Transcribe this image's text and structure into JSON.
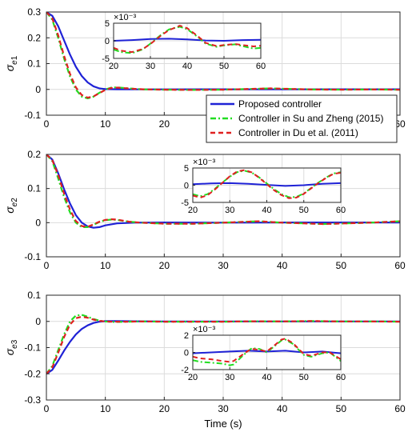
{
  "colors": {
    "proposed": "#1f22d6",
    "su_zheng": "#22dd22",
    "du": "#e02020",
    "grid": "#dcdcdc",
    "axis": "#262626"
  },
  "legend": {
    "entries": [
      "Proposed controller",
      "Controller in Su and Zheng (2015)",
      "Controller in Du et al. (2011)"
    ]
  },
  "chart_data": [
    {
      "type": "line",
      "ylabel": "σe1",
      "xlim": [
        0,
        60
      ],
      "ylim": [
        -0.1,
        0.3
      ],
      "xticks": [
        0,
        10,
        20,
        30,
        40,
        50,
        60
      ],
      "yticks": [
        -0.1,
        0,
        0.1,
        0.2,
        0.3
      ],
      "xticklabels": [
        "0",
        "10",
        "20",
        "30",
        "40",
        "50",
        "60"
      ],
      "yticklabels": [
        "-0.1",
        "0",
        "0.1",
        "0.2",
        "0.3"
      ],
      "grid": true,
      "legend_position": "bottom-right",
      "series": [
        {
          "name": "Proposed controller",
          "style": "solid",
          "x": [
            0,
            1,
            2,
            3,
            4,
            5,
            6,
            7,
            8,
            9,
            10,
            12,
            15,
            20,
            30,
            40,
            50,
            60
          ],
          "y": [
            0.3,
            0.285,
            0.245,
            0.19,
            0.135,
            0.088,
            0.052,
            0.027,
            0.012,
            0.004,
            0.001,
            0.0005,
            0.0003,
            0.0002,
            0.0004,
            0.0003,
            0.0005,
            0.0005
          ]
        },
        {
          "name": "Controller in Su and Zheng (2015)",
          "style": "dashdot",
          "x": [
            0,
            1,
            2,
            3,
            4,
            5,
            6,
            7,
            8,
            9,
            10,
            11,
            12,
            13,
            15,
            17,
            20,
            25,
            30,
            38,
            45,
            50,
            55,
            60
          ],
          "y": [
            0.3,
            0.27,
            0.2,
            0.12,
            0.05,
            0.0,
            -0.028,
            -0.035,
            -0.028,
            -0.013,
            0.0,
            0.007,
            0.008,
            0.006,
            0.002,
            0.0,
            -0.001,
            -0.002,
            -0.001,
            0.004,
            0.0,
            -0.001,
            0.0,
            -0.001
          ]
        },
        {
          "name": "Controller in Du et al. (2011)",
          "style": "dashed",
          "x": [
            0,
            1,
            2,
            3,
            4,
            5,
            6,
            7,
            8,
            9,
            10,
            11,
            12,
            13,
            15,
            17,
            20,
            25,
            30,
            38,
            45,
            50,
            55,
            60
          ],
          "y": [
            0.3,
            0.275,
            0.21,
            0.13,
            0.06,
            0.008,
            -0.022,
            -0.032,
            -0.027,
            -0.014,
            -0.002,
            0.005,
            0.007,
            0.005,
            0.002,
            0.0,
            -0.001,
            -0.002,
            -0.001,
            0.004,
            0.0,
            -0.001,
            0.0,
            -0.001
          ]
        }
      ],
      "inset": {
        "scale_label": "×10⁻³",
        "xlim": [
          20,
          60
        ],
        "ylim": [
          -5,
          5
        ],
        "xticks": [
          20,
          30,
          40,
          50,
          60
        ],
        "yticks": [
          -5,
          0,
          5
        ],
        "xticklabels": [
          "20",
          "30",
          "40",
          "50",
          "60"
        ],
        "yticklabels": [
          "-5",
          "0",
          "5"
        ],
        "series": [
          {
            "name": "Proposed controller",
            "x": [
              20,
              25,
              30,
              35,
              40,
              45,
              50,
              55,
              60
            ],
            "y": [
              0,
              0.2,
              0.5,
              0.6,
              0.4,
              0.1,
              0.0,
              0.2,
              0.3
            ]
          },
          {
            "name": "Controller in Su and Zheng (2015)",
            "x": [
              20,
              22,
              25,
              28,
              30,
              33,
              35,
              38,
              40,
              43,
              45,
              48,
              50,
              53,
              55,
              58,
              60
            ],
            "y": [
              -2.5,
              -3.2,
              -3.5,
              -2.4,
              -0.8,
              1.8,
              3.2,
              4.0,
              3.3,
              1.0,
              -0.8,
              -1.7,
              -1.3,
              -1.0,
              -1.5,
              -2.2,
              -2.0
            ]
          },
          {
            "name": "Controller in Du et al. (2011)",
            "x": [
              20,
              22,
              25,
              28,
              30,
              33,
              35,
              38,
              40,
              43,
              45,
              48,
              50,
              53,
              55,
              58,
              60
            ],
            "y": [
              -2.0,
              -2.8,
              -3.2,
              -2.3,
              -0.9,
              1.6,
              3.0,
              4.3,
              3.6,
              1.2,
              -0.6,
              -1.5,
              -1.2,
              -0.9,
              -1.2,
              -1.6,
              -1.4
            ]
          }
        ]
      }
    },
    {
      "type": "line",
      "ylabel": "σe2",
      "xlim": [
        0,
        60
      ],
      "ylim": [
        -0.1,
        0.2
      ],
      "xticks": [
        0,
        10,
        20,
        30,
        40,
        50,
        60
      ],
      "yticks": [
        -0.1,
        0,
        0.1,
        0.2
      ],
      "xticklabels": [
        "0",
        "10",
        "20",
        "30",
        "40",
        "50",
        "60"
      ],
      "yticklabels": [
        "-0.1",
        "0",
        "0.1",
        "0.2"
      ],
      "grid": true,
      "series": [
        {
          "name": "Proposed controller",
          "style": "solid",
          "x": [
            0,
            1,
            2,
            3,
            4,
            5,
            6,
            7,
            8,
            9,
            10,
            12,
            15,
            20,
            30,
            40,
            50,
            60
          ],
          "y": [
            0.2,
            0.185,
            0.145,
            0.098,
            0.056,
            0.022,
            0.0,
            -0.011,
            -0.015,
            -0.013,
            -0.008,
            -0.002,
            0.0,
            0.0005,
            0.0,
            0.0005,
            0.0005,
            0.0005
          ]
        },
        {
          "name": "Controller in Su and Zheng (2015)",
          "style": "dashdot",
          "x": [
            0,
            1,
            2,
            3,
            4,
            5,
            6,
            7,
            8,
            9,
            10,
            11,
            12,
            13,
            14,
            16,
            20,
            25,
            30,
            36,
            40,
            47,
            55,
            60
          ],
          "y": [
            0.2,
            0.18,
            0.13,
            0.075,
            0.03,
            0.0,
            -0.013,
            -0.013,
            -0.006,
            0.002,
            0.007,
            0.009,
            0.008,
            0.005,
            0.003,
            0.0,
            -0.003,
            -0.003,
            0.0,
            0.004,
            0.0,
            -0.004,
            0.0,
            0.004
          ]
        },
        {
          "name": "Controller in Du et al. (2011)",
          "style": "dashed",
          "x": [
            0,
            1,
            2,
            3,
            4,
            5,
            6,
            7,
            8,
            9,
            10,
            11,
            12,
            13,
            14,
            16,
            20,
            25,
            30,
            36,
            40,
            47,
            55,
            60
          ],
          "y": [
            0.2,
            0.183,
            0.14,
            0.085,
            0.038,
            0.005,
            -0.01,
            -0.012,
            -0.005,
            0.003,
            0.008,
            0.01,
            0.009,
            0.006,
            0.003,
            0.0,
            -0.003,
            -0.003,
            0.0,
            0.004,
            0.0,
            -0.004,
            0.0,
            0.004
          ]
        }
      ],
      "inset": {
        "scale_label": "×10⁻³",
        "xlim": [
          20,
          60
        ],
        "ylim": [
          -5,
          5
        ],
        "xticks": [
          20,
          30,
          40,
          50,
          60
        ],
        "yticks": [
          -5,
          0,
          5
        ],
        "xticklabels": [
          "20",
          "30",
          "40",
          "50",
          "60"
        ],
        "yticklabels": [
          "-5",
          "0",
          "5"
        ],
        "series": [
          {
            "name": "Proposed controller",
            "x": [
              20,
              25,
              30,
              35,
              40,
              45,
              50,
              55,
              60
            ],
            "y": [
              0.3,
              0.5,
              0.6,
              0.4,
              0.1,
              -0.2,
              0.0,
              0.4,
              0.6
            ]
          },
          {
            "name": "Controller in Su and Zheng (2015)",
            "x": [
              20,
              22,
              24,
              26,
              28,
              30,
              32,
              34,
              36,
              38,
              40,
              42,
              44,
              46,
              48,
              50,
              52,
              54,
              56,
              58,
              60
            ],
            "y": [
              -2.6,
              -3.2,
              -2.6,
              -1.0,
              0.8,
              2.5,
              3.8,
              4.2,
              3.6,
              2.2,
              0.5,
              -1.2,
              -2.6,
              -3.5,
              -3.4,
              -2.4,
              -0.8,
              0.8,
              2.2,
              3.4,
              3.8
            ]
          },
          {
            "name": "Controller in Du et al. (2011)",
            "x": [
              20,
              22,
              24,
              26,
              28,
              30,
              32,
              34,
              36,
              38,
              40,
              42,
              44,
              46,
              48,
              50,
              52,
              54,
              56,
              58,
              60
            ],
            "y": [
              -3.0,
              -3.6,
              -2.9,
              -1.2,
              0.7,
              2.6,
              4.0,
              4.4,
              3.7,
              2.1,
              0.3,
              -1.5,
              -2.9,
              -3.8,
              -3.6,
              -2.5,
              -0.9,
              0.7,
              2.1,
              3.3,
              3.6
            ]
          }
        ]
      }
    },
    {
      "type": "line",
      "ylabel": "σe3",
      "xlabel": "Time (s)",
      "xlim": [
        0,
        60
      ],
      "ylim": [
        -0.3,
        0.1
      ],
      "xticks": [
        0,
        10,
        20,
        30,
        40,
        50,
        60
      ],
      "yticks": [
        -0.3,
        -0.2,
        -0.1,
        0,
        0.1
      ],
      "xticklabels": [
        "0",
        "10",
        "20",
        "30",
        "40",
        "50",
        "60"
      ],
      "yticklabels": [
        "-0.3",
        "-0.2",
        "-0.1",
        "0",
        "0.1"
      ],
      "grid": true,
      "series": [
        {
          "name": "Proposed controller",
          "style": "solid",
          "x": [
            0,
            1,
            2,
            3,
            4,
            5,
            6,
            7,
            8,
            9,
            10,
            12,
            15,
            20,
            30,
            40,
            50,
            60
          ],
          "y": [
            -0.2,
            -0.185,
            -0.15,
            -0.112,
            -0.078,
            -0.05,
            -0.029,
            -0.015,
            -0.006,
            -0.001,
            0.001,
            0.001,
            0.0005,
            0.0,
            0.0,
            0.0,
            0.0,
            0.0
          ]
        },
        {
          "name": "Controller in Su and Zheng (2015)",
          "style": "dashdot",
          "x": [
            0,
            1,
            2,
            3,
            4,
            5,
            6,
            7,
            8,
            9,
            10,
            11,
            12,
            14,
            16,
            20,
            25,
            30,
            35,
            40,
            45,
            50,
            55,
            60
          ],
          "y": [
            -0.2,
            -0.17,
            -0.11,
            -0.05,
            0.0,
            0.022,
            0.025,
            0.018,
            0.009,
            0.003,
            0.0,
            -0.002,
            -0.002,
            -0.001,
            0.0,
            -0.001,
            -0.001,
            -0.0015,
            0.0005,
            0.0,
            0.0015,
            0.0,
            0.0,
            -0.001
          ]
        },
        {
          "name": "Controller in Du et al. (2011)",
          "style": "dashed",
          "x": [
            0,
            1,
            2,
            3,
            4,
            5,
            6,
            7,
            8,
            9,
            10,
            11,
            12,
            14,
            16,
            20,
            25,
            30,
            35,
            40,
            45,
            50,
            55,
            60
          ],
          "y": [
            -0.2,
            -0.175,
            -0.12,
            -0.06,
            -0.012,
            0.012,
            0.018,
            0.014,
            0.007,
            0.002,
            0.0,
            -0.001,
            -0.001,
            -0.001,
            0.0,
            -0.001,
            -0.001,
            -0.001,
            0.0005,
            0.0,
            0.0015,
            0.0,
            0.0,
            -0.001
          ]
        }
      ],
      "inset": {
        "scale_label": "×10⁻³",
        "xlim": [
          20,
          60
        ],
        "ylim": [
          -2,
          2
        ],
        "xticks": [
          20,
          30,
          40,
          50,
          60
        ],
        "yticks": [
          -2,
          0,
          2
        ],
        "xticklabels": [
          "20",
          "30",
          "40",
          "50",
          "60"
        ],
        "yticklabels": [
          "-2",
          "0",
          "2"
        ],
        "series": [
          {
            "name": "Proposed controller",
            "x": [
              20,
              25,
              30,
              35,
              40,
              45,
              50,
              55,
              60
            ],
            "y": [
              -0.1,
              0.0,
              0.1,
              0.2,
              0.1,
              0.2,
              0.0,
              0.1,
              -0.1
            ]
          },
          {
            "name": "Controller in Su and Zheng (2015)",
            "x": [
              20,
              22,
              25,
              28,
              30,
              31,
              33,
              35,
              36,
              38,
              40,
              42,
              44,
              45,
              47,
              50,
              52,
              55,
              57,
              60
            ],
            "y": [
              -0.9,
              -1.1,
              -1.2,
              -1.3,
              -1.5,
              -1.4,
              -0.6,
              0.2,
              0.5,
              0.4,
              0.0,
              0.7,
              1.4,
              1.5,
              1.0,
              -0.3,
              -0.5,
              -0.1,
              0.0,
              -1.0
            ]
          },
          {
            "name": "Controller in Du et al. (2011)",
            "x": [
              20,
              22,
              25,
              28,
              30,
              31,
              33,
              35,
              36,
              38,
              40,
              42,
              44,
              45,
              47,
              50,
              52,
              55,
              57,
              60
            ],
            "y": [
              -0.5,
              -0.7,
              -0.8,
              -1.0,
              -1.1,
              -1.0,
              -0.4,
              0.2,
              0.4,
              0.3,
              0.1,
              0.8,
              1.5,
              1.6,
              1.1,
              -0.2,
              -0.4,
              0.0,
              0.0,
              -0.8
            ]
          }
        ]
      }
    }
  ]
}
